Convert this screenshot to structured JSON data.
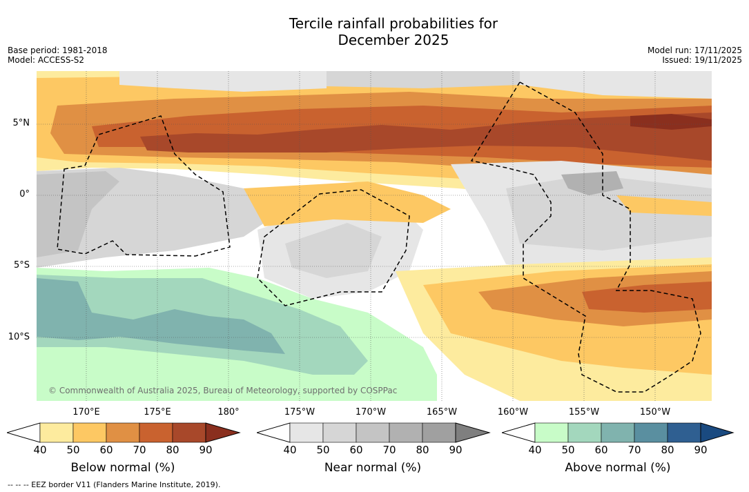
{
  "title_line1": "Tercile rainfall probabilities for",
  "title_line2": "December 2025",
  "base_period": "Base period: 1981-2018",
  "model": "Model: ACCESS-S2",
  "model_run": "Model run: 17/11/2025",
  "issued": "Issued: 19/11/2025",
  "lat_labels": [
    "5°N",
    "0°",
    "5°S",
    "10°S"
  ],
  "lon_labels": [
    "170°E",
    "175°E",
    "180°",
    "175°W",
    "170°W",
    "165°W",
    "160°W",
    "155°W",
    "150°W"
  ],
  "copyright": "© Commonwealth of Australia 2025, Bureau of Meteorology, supported by COSPPac",
  "colorbars": [
    {
      "title": "Below normal (%)",
      "ticks": [
        "40",
        "50",
        "60",
        "70",
        "80",
        "90"
      ],
      "colors": [
        "#ffffff",
        "#fdeb9e",
        "#fdc863",
        "#e09044",
        "#c9622f",
        "#a8482a",
        "#8a2f1e"
      ]
    },
    {
      "title": "Near normal (%)",
      "ticks": [
        "40",
        "50",
        "60",
        "70",
        "80",
        "90"
      ],
      "colors": [
        "#ffffff",
        "#e6e6e6",
        "#d6d6d6",
        "#c4c4c4",
        "#b1b1b1",
        "#a0a0a0",
        "#7f7f7f"
      ]
    },
    {
      "title": "Above normal (%)",
      "ticks": [
        "40",
        "50",
        "60",
        "70",
        "80",
        "90"
      ],
      "colors": [
        "#ffffff",
        "#c8fcc8",
        "#a3d7bd",
        "#80b3ae",
        "#5a8fa0",
        "#2f5f91",
        "#1a4a80"
      ]
    }
  ],
  "eez_note": "--  --  -- EEZ border V11 (Flanders Marine Institute, 2019)."
}
